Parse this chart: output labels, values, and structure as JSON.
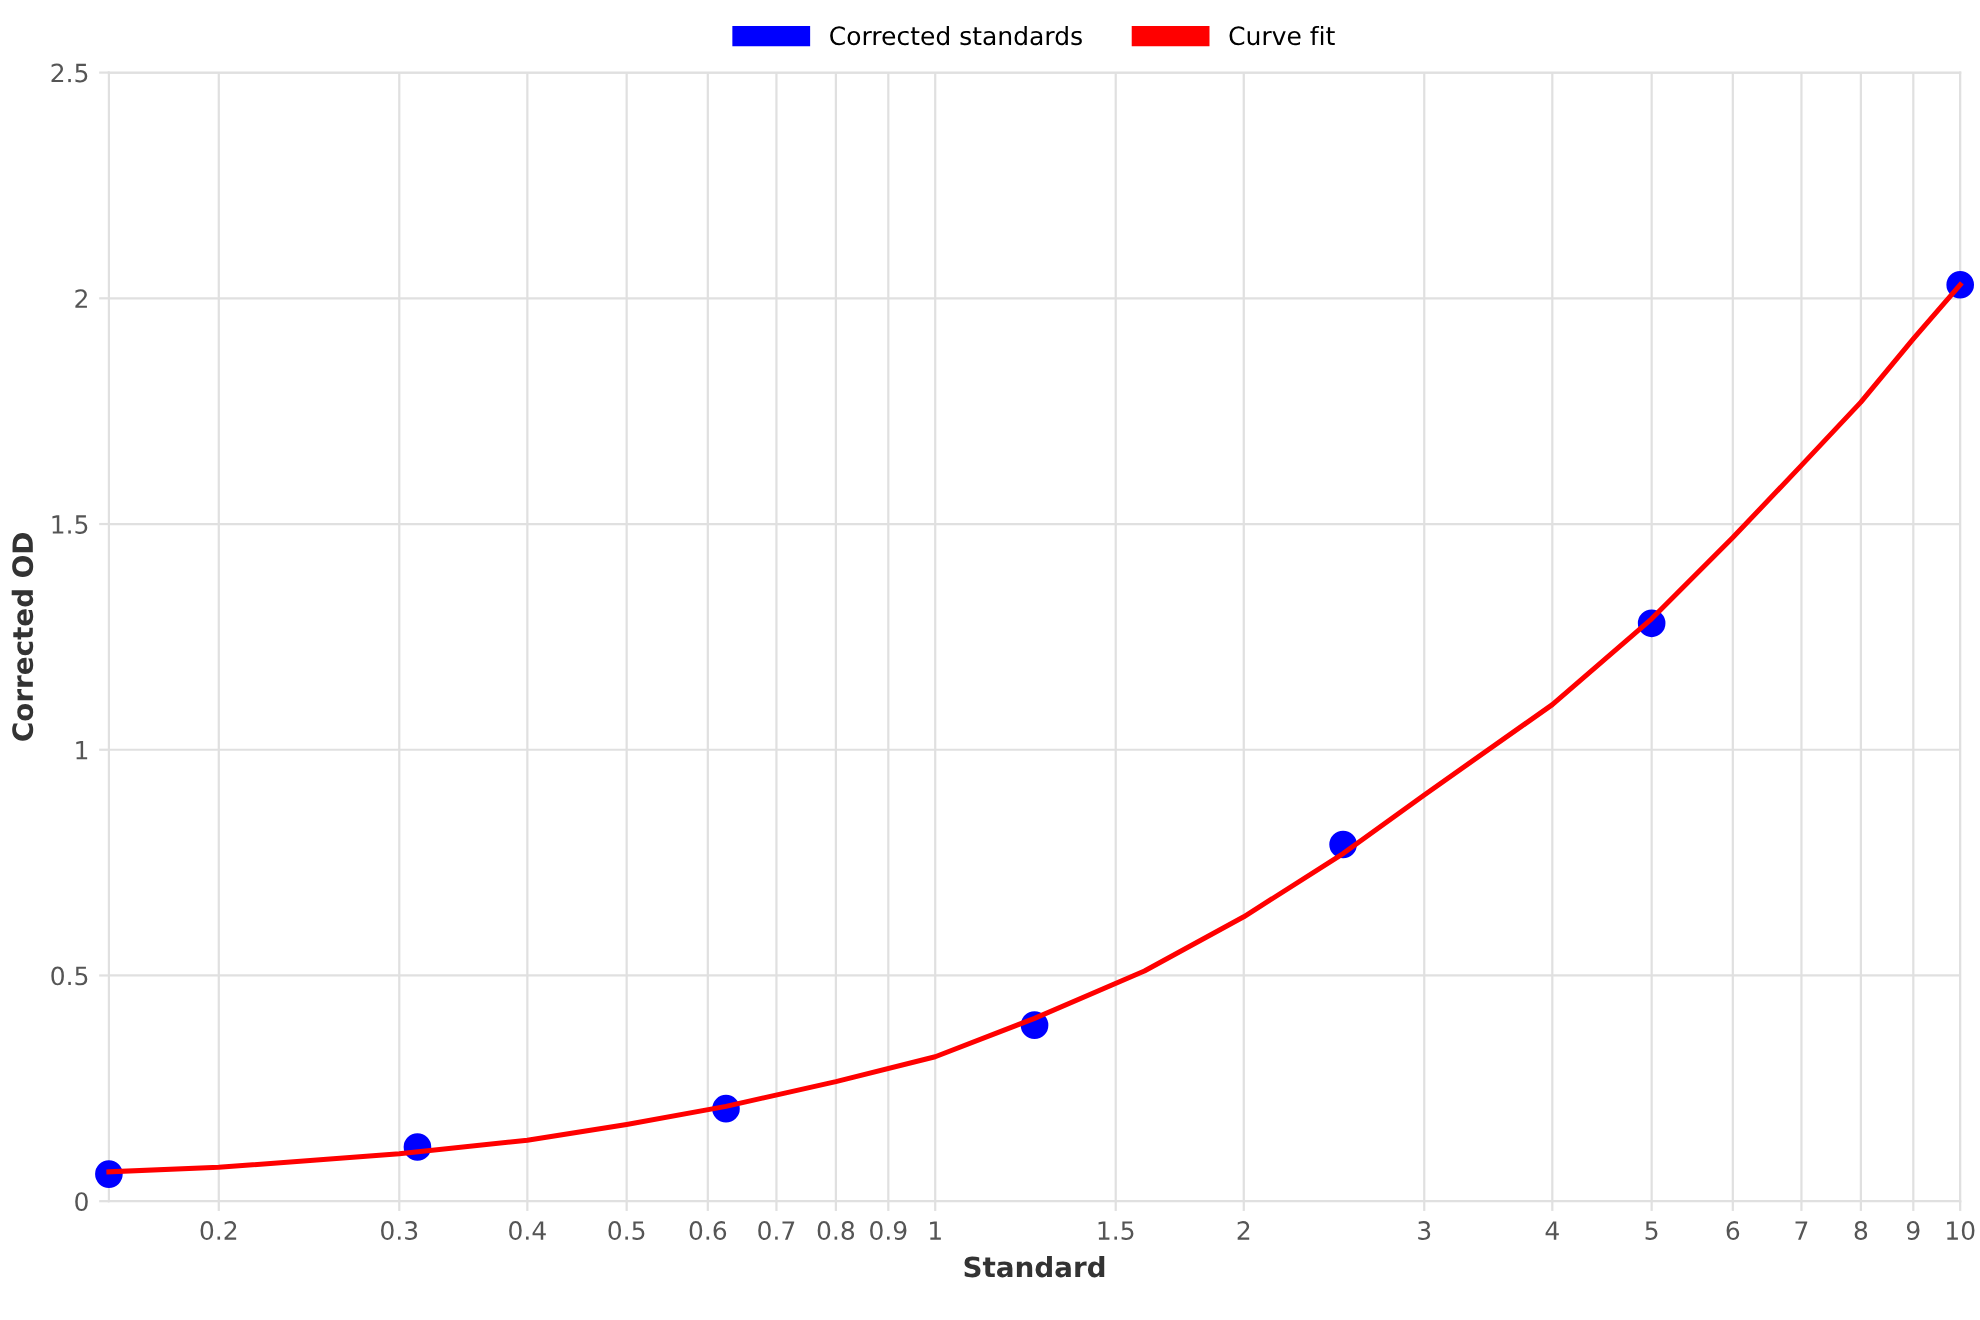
{
  "chart_data": {
    "type": "scatter",
    "xlabel": "Standard",
    "ylabel": "Corrected OD",
    "log": "x",
    "grid": true,
    "legend": "top",
    "xlim": [
      0.15625,
      10
    ],
    "ylim": [
      0,
      2.5
    ],
    "xticks": [
      0.2,
      0.3,
      0.4,
      0.5,
      0.6,
      0.7,
      0.8,
      0.9,
      1,
      1.5,
      2,
      3,
      4,
      5,
      6,
      7,
      8,
      9,
      10
    ],
    "yticks": [
      0,
      0.5,
      1,
      1.5,
      2,
      2.5
    ],
    "series": [
      {
        "name": "Corrected standards",
        "color": "#0000ff",
        "marker": "circle",
        "x": [
          0.15625,
          0.3125,
          0.625,
          1.25,
          2.5,
          5,
          10
        ],
        "values": [
          0.06,
          0.12,
          0.205,
          0.39,
          0.79,
          1.28,
          2.03
        ]
      },
      {
        "name": "Curve fit",
        "color": "#ff0000",
        "type": "line",
        "marker": "none",
        "x": [
          0.15625,
          0.2,
          0.3,
          0.4,
          0.5,
          0.625,
          0.8,
          1,
          1.25,
          1.6,
          2,
          2.5,
          3,
          4,
          5,
          6,
          7,
          8,
          9,
          10
        ],
        "values": [
          0.065,
          0.075,
          0.105,
          0.135,
          0.17,
          0.21,
          0.265,
          0.32,
          0.405,
          0.51,
          0.63,
          0.77,
          0.9,
          1.1,
          1.29,
          1.47,
          1.63,
          1.77,
          1.91,
          2.03
        ]
      }
    ]
  }
}
